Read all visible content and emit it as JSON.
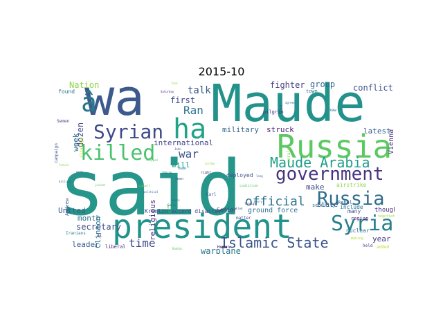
{
  "title": "2015-10",
  "words": [
    {
      "text": "said",
      "color": "#26958a"
    },
    {
      "text": "wa",
      "color": "#3c5a8c"
    },
    {
      "text": "Maude",
      "color": "#22928b"
    },
    {
      "text": "president",
      "color": "#21938c"
    },
    {
      "text": "Russian",
      "color": "#5cc862"
    },
    {
      "text": "ha",
      "color": "#20a486"
    },
    {
      "text": "â",
      "color": "#2a788e"
    },
    {
      "text": "Syrian",
      "color": "#3e4a89"
    },
    {
      "text": "killed",
      "color": "#4ac16d"
    },
    {
      "text": "government",
      "color": "#463480"
    },
    {
      "text": "Russia",
      "color": "#2e6d8e"
    },
    {
      "text": "Syria",
      "color": "#277f8e"
    },
    {
      "text": "Islamic State",
      "color": "#3a538b"
    },
    {
      "text": "Maude Arabia",
      "color": "#1f9e89"
    },
    {
      "text": "official",
      "color": "#2b748e"
    },
    {
      "text": "time",
      "color": "#3e4c8a"
    },
    {
      "text": "Ran",
      "color": "#2d708e"
    },
    {
      "text": "war",
      "color": "#3a548c"
    },
    {
      "text": "talk",
      "color": "#39568c"
    },
    {
      "text": "fighter",
      "color": "#433e85"
    },
    {
      "text": "group",
      "color": "#2f6b8e"
    },
    {
      "text": "conflict",
      "color": "#3b528b"
    },
    {
      "text": "Nation",
      "color": "#8ed645"
    },
    {
      "text": "dozen",
      "color": "#3e4989"
    },
    {
      "text": "week",
      "color": "#2e6e8e"
    },
    {
      "text": "first",
      "color": "#3f4788"
    },
    {
      "text": "international",
      "color": "#414487"
    },
    {
      "text": "will",
      "color": "#1f9a8a"
    },
    {
      "text": "military",
      "color": "#31668e"
    },
    {
      "text": "struck",
      "color": "#482374"
    },
    {
      "text": "latest",
      "color": "#355e8d"
    },
    {
      "text": "Vienna",
      "color": "#46337e"
    },
    {
      "text": "month",
      "color": "#2c728e"
    },
    {
      "text": "United",
      "color": "#365d8d"
    },
    {
      "text": "secretary",
      "color": "#3d4d8a"
    },
    {
      "text": "leader",
      "color": "#375b8d"
    },
    {
      "text": "Clinton",
      "color": "#2b748e"
    },
    {
      "text": "religious",
      "color": "#472d7b"
    },
    {
      "text": "make",
      "color": "#3f4889"
    },
    {
      "text": "State",
      "color": "#355f8d"
    },
    {
      "text": "warplane",
      "color": "#2a778e"
    },
    {
      "text": "year",
      "color": "#443983"
    },
    {
      "text": "thought",
      "color": "#46327e"
    },
    {
      "text": "ground force",
      "color": "#2c718e"
    },
    {
      "text": "Kremlin accord disaster",
      "color": "#3e4a89"
    },
    {
      "text": "Senior",
      "color": "#472a7a"
    },
    {
      "text": "deployed",
      "color": "#3b528b"
    },
    {
      "text": "security",
      "color": "#31688e"
    },
    {
      "text": "airstrike",
      "color": "#8bd646"
    },
    {
      "text": "include",
      "color": "#2c728e"
    },
    {
      "text": "many",
      "color": "#3d4e8a"
    },
    {
      "text": "Rebel",
      "color": "#355f8d"
    },
    {
      "text": "nuclear",
      "color": "#2a768e"
    },
    {
      "text": "region",
      "color": "#481b6d"
    },
    {
      "text": "Andrew",
      "color": "#3b518b"
    },
    {
      "text": "Iranians",
      "color": "#27808e"
    },
    {
      "text": "liberal",
      "color": "#481769"
    },
    {
      "text": "Human",
      "color": "#440154"
    },
    {
      "text": "matter",
      "color": "#3e4c8a"
    },
    {
      "text": "held",
      "color": "#433e85"
    },
    {
      "text": "added",
      "color": "#b5de2b"
    },
    {
      "text": "found",
      "color": "#2a768e"
    },
    {
      "text": "strategy",
      "color": "#c2df23"
    },
    {
      "text": "campaign",
      "color": "#3b528b"
    },
    {
      "text": "Semen",
      "color": "#443b84"
    },
    {
      "text": "pilgrim",
      "color": "#482979"
    },
    {
      "text": "town",
      "color": "#2d708e"
    },
    {
      "text": "morale",
      "color": "#7fd34e"
    },
    {
      "text": "new",
      "color": "#2f6c8e"
    },
    {
      "text": "coalition",
      "color": "#5ec962"
    },
    {
      "text": "say",
      "color": "#6ccd5a"
    },
    {
      "text": "Karl",
      "color": "#35608d"
    },
    {
      "text": "making",
      "color": "#addc30"
    },
    {
      "text": "negotiation",
      "color": "#a2da37"
    },
    {
      "text": "al",
      "color": "#46327e"
    },
    {
      "text": "name",
      "color": "#26828e"
    },
    {
      "text": "seen",
      "color": "#3a548c"
    },
    {
      "text": "right",
      "color": "#472c7a"
    },
    {
      "text": "agreed",
      "color": "#2c728e"
    },
    {
      "text": "brand",
      "color": "#3b528b"
    },
    {
      "text": "foreign",
      "color": "#481f70"
    },
    {
      "text": "Henry",
      "color": "#2e6e8e"
    },
    {
      "text": "long",
      "color": "#2f6b8e"
    },
    {
      "text": "killing",
      "color": "#2d708e"
    },
    {
      "text": "joined",
      "color": "#50c46a"
    },
    {
      "text": "political",
      "color": "#2e6f8e"
    },
    {
      "text": "support",
      "color": "#67cc5c"
    },
    {
      "text": "called",
      "color": "#3a548c"
    },
    {
      "text": "future",
      "color": "#86d549"
    },
    {
      "text": "week",
      "color": "#2e6e8e"
    },
    {
      "text": "stopped",
      "color": "#5ac864"
    },
    {
      "text": "Tehran",
      "color": "#2c738e"
    },
    {
      "text": "Hosni",
      "color": "#31688e"
    },
    {
      "text": "Baddai",
      "color": "#5ac864"
    },
    {
      "text": "Saturday",
      "color": "#46337e"
    },
    {
      "text": "John",
      "color": "#3c4f8a"
    },
    {
      "text": "Task",
      "color": "#8ed645"
    },
    {
      "text": "Jordan",
      "color": "#8bd646"
    },
    {
      "text": "Sadiq",
      "color": "#2c728e"
    }
  ]
}
